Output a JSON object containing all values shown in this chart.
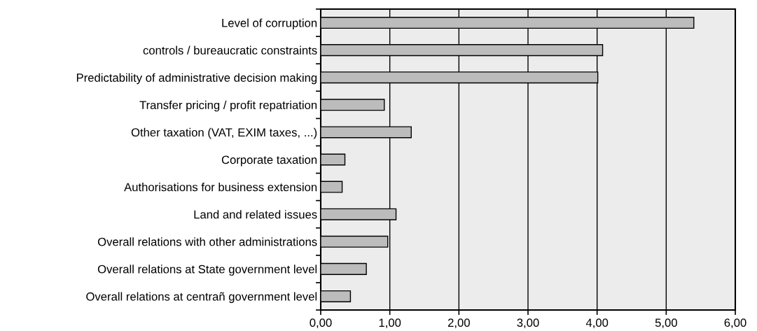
{
  "chart_data": {
    "type": "bar",
    "orientation": "horizontal",
    "categories": [
      "Level of corruption",
      "controls / bureaucratic constraints",
      "Predictability of administrative decision making",
      "Transfer pricing / profit repatriation",
      "Other taxation (VAT, EXIM taxes, ...)",
      "Corporate taxation",
      "Authorisations for business extension",
      "Land and related issues",
      "Overall relations with other administrations",
      "Overall relations at State government level",
      "Overall relations at centrañ government level"
    ],
    "values": [
      5.4,
      4.08,
      4.01,
      0.92,
      1.31,
      0.35,
      0.31,
      1.09,
      0.97,
      0.66,
      0.43
    ],
    "color": "#bcbcbc",
    "xlim": [
      0,
      6
    ],
    "xticks": [
      {
        "value": 0,
        "label": "0,00"
      },
      {
        "value": 1,
        "label": "1,00"
      },
      {
        "value": 2,
        "label": "2,00"
      },
      {
        "value": 3,
        "label": "3,00"
      },
      {
        "value": 4,
        "label": "4,00"
      },
      {
        "value": 5,
        "label": "5,00"
      },
      {
        "value": 6,
        "label": "6,00"
      }
    ],
    "grid": "x"
  }
}
